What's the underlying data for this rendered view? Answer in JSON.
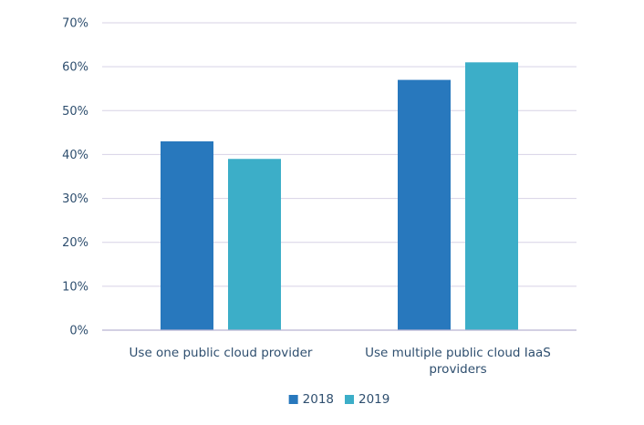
{
  "chart_data": {
    "type": "bar",
    "categories": [
      "Use one public cloud provider",
      "Use multiple public cloud IaaS providers"
    ],
    "series": [
      {
        "name": "2018",
        "values": [
          43,
          57
        ],
        "color": "#2878bd"
      },
      {
        "name": "2019",
        "values": [
          39,
          61
        ],
        "color": "#3caec8"
      }
    ],
    "ylim": [
      0,
      70
    ],
    "yticks": [
      0,
      10,
      20,
      30,
      40,
      50,
      60,
      70
    ],
    "ytick_labels": [
      "0%",
      "10%",
      "20%",
      "30%",
      "40%",
      "50%",
      "60%",
      "70%"
    ],
    "grid": true,
    "legend": "bottom-center"
  }
}
